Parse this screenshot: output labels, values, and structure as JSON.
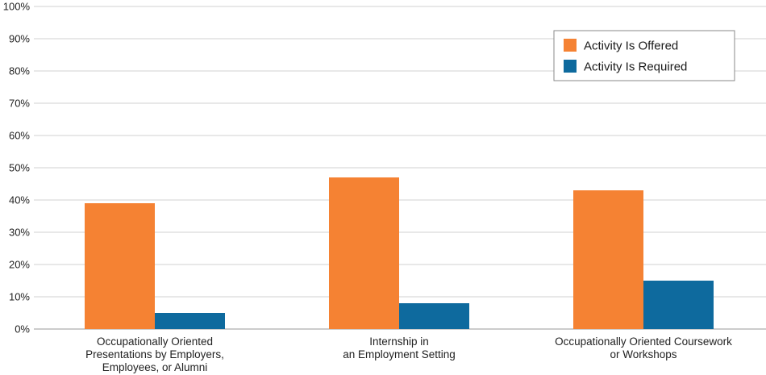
{
  "chart_data": {
    "type": "bar",
    "title": "",
    "xlabel": "",
    "ylabel": "",
    "ylim": [
      0,
      100
    ],
    "yticks": [
      0,
      10,
      20,
      30,
      40,
      50,
      60,
      70,
      80,
      90,
      100
    ],
    "ytick_labels": [
      "0%",
      "10%",
      "20%",
      "30%",
      "40%",
      "50%",
      "60%",
      "70%",
      "80%",
      "90%",
      "100%"
    ],
    "grid": true,
    "legend_position": "top-right",
    "categories": [
      [
        "Occupationally Oriented",
        "Presentations by Employers,",
        "Employees, or Alumni"
      ],
      [
        "Internship in",
        "an Employment Setting"
      ],
      [
        "Occupationally Oriented Coursework",
        "or Workshops"
      ]
    ],
    "series": [
      {
        "name": "Activity Is Offered",
        "color": "#f58233",
        "values": [
          39,
          47,
          43
        ]
      },
      {
        "name": "Activity Is Required",
        "color": "#0e6a9e",
        "values": [
          5,
          8,
          15
        ]
      }
    ]
  }
}
